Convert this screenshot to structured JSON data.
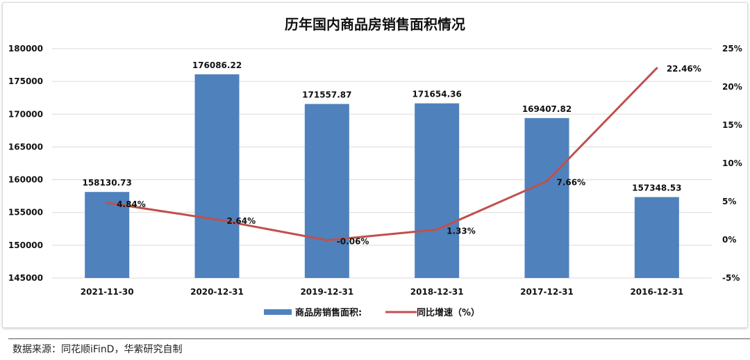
{
  "chart_data": {
    "type": "bar+line",
    "title": "历年国内商品房销售面积情况",
    "categories": [
      "2021-11-30",
      "2020-12-31",
      "2019-12-31",
      "2018-12-31",
      "2017-12-31",
      "2016-12-31"
    ],
    "series": [
      {
        "name": "商品房销售面积:",
        "type": "bar",
        "axis": "left",
        "color": "#4f81bd",
        "values": [
          158130.73,
          176086.22,
          171557.87,
          171654.36,
          169407.82,
          157348.53
        ],
        "labels": [
          "158130.73",
          "176086.22",
          "171557.87",
          "171654.36",
          "169407.82",
          "157348.53"
        ]
      },
      {
        "name": "同比增速（%）",
        "type": "line",
        "axis": "right",
        "color": "#c0504d",
        "values": [
          4.84,
          2.64,
          -0.06,
          1.33,
          7.66,
          22.46
        ],
        "labels": [
          "4.84%",
          "2.64%",
          "-0.06%",
          "1.33%",
          "7.66%",
          "22.46%"
        ]
      }
    ],
    "left_axis": {
      "ylim": [
        145000,
        180000
      ],
      "ticks": [
        "145000",
        "150000",
        "155000",
        "160000",
        "165000",
        "170000",
        "175000",
        "180000"
      ]
    },
    "right_axis": {
      "ylim": [
        -5,
        25
      ],
      "ticks": [
        "-5%",
        "0%",
        "5%",
        "10%",
        "15%",
        "20%",
        "25%"
      ]
    },
    "grid": true,
    "legend": "bottom"
  },
  "footer": {
    "source": "数据来源：同花顺iFinD，华紫研究自制"
  }
}
